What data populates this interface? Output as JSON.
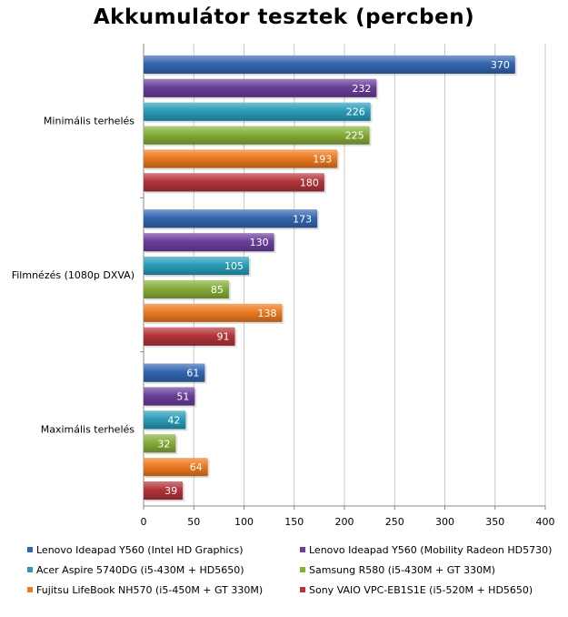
{
  "chart_data": {
    "type": "bar",
    "orientation": "horizontal",
    "title": "Akkumulátor tesztek (percben)",
    "categories": [
      "Minimális terhelés",
      "Filmnézés (1080p DXVA)",
      "Maximális terhelés"
    ],
    "series": [
      {
        "name": "Lenovo Ideapad Y560 (Intel HD Graphics)",
        "color": "#3466b0",
        "values": [
          370,
          173,
          61
        ]
      },
      {
        "name": "Lenovo Ideapad Y560 (Mobility Radeon HD5730)",
        "color": "#6a3e9a",
        "values": [
          232,
          130,
          51
        ]
      },
      {
        "name": "Acer Aspire 5740DG (i5-430M + HD5650)",
        "color": "#2b9cb8",
        "values": [
          226,
          105,
          42
        ]
      },
      {
        "name": "Samsung R580 (i5-430M + GT 330M)",
        "color": "#86ad3a",
        "values": [
          225,
          85,
          32
        ]
      },
      {
        "name": "Fujitsu LifeBook NH570 (i5-450M + GT 330M)",
        "color": "#ec7a20",
        "values": [
          193,
          138,
          64
        ]
      },
      {
        "name": "Sony VAIO VPC-EB1S1E (i5-520M + HD5650)",
        "color": "#b3343a",
        "values": [
          180,
          91,
          39
        ]
      }
    ],
    "xlim": [
      0,
      400
    ],
    "xticks": [
      0,
      50,
      100,
      150,
      200,
      250,
      300,
      350,
      400
    ],
    "grid": true,
    "legend_position": "bottom",
    "data_labels": true
  }
}
